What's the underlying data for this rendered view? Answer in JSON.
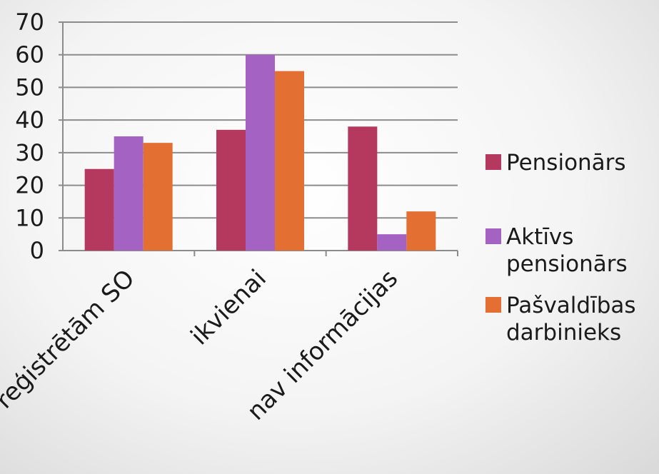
{
  "chart_data": {
    "type": "bar",
    "categories": [
      "reģistrētām SO",
      "ikvienai",
      "nav informācijas"
    ],
    "series": [
      {
        "name": "Pensionārs",
        "values": [
          25,
          37,
          38
        ],
        "color": "#b5385f"
      },
      {
        "name": "Aktīvs pensionārs",
        "values": [
          35,
          60,
          5
        ],
        "color": "#a463c2"
      },
      {
        "name": "Pašvaldības darbinieks",
        "values": [
          33,
          55,
          12
        ],
        "color": "#e36f33"
      }
    ],
    "ylim": [
      0,
      70
    ],
    "yticks": [
      0,
      10,
      20,
      30,
      40,
      50,
      60,
      70
    ],
    "grid": true,
    "legend_position": "right",
    "legend_labels": [
      [
        "Pensionārs"
      ],
      [
        "Aktīvs",
        "pensionārs"
      ],
      [
        "Pašvaldības",
        "darbinieks"
      ]
    ],
    "title": "",
    "xlabel": "",
    "ylabel": ""
  }
}
